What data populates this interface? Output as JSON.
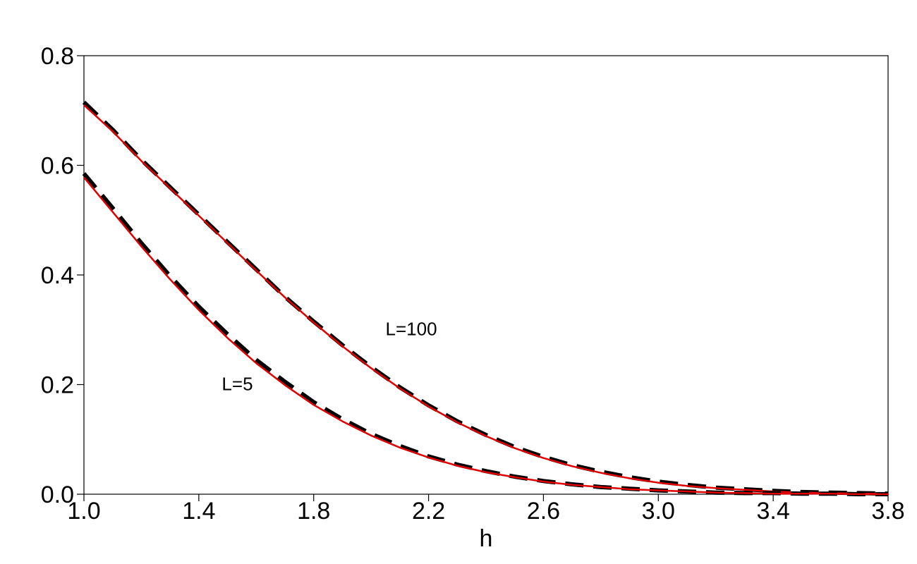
{
  "chart_data": {
    "type": "line",
    "title": "",
    "xlabel": "h",
    "ylabel": "",
    "xlim": [
      1.0,
      3.8
    ],
    "ylim": [
      0.0,
      0.8
    ],
    "grid": false,
    "x_ticks": [
      "1.0",
      "1.4",
      "1.8",
      "2.2",
      "2.6",
      "3.0",
      "3.4",
      "3.8"
    ],
    "y_ticks": [
      "0.0",
      "0.2",
      "0.4",
      "0.6",
      "0.8"
    ],
    "annotations": [
      {
        "text": "L=100",
        "x": 2.05,
        "y": 0.29
      },
      {
        "text": "L=5",
        "x": 1.48,
        "y": 0.19
      }
    ],
    "series": [
      {
        "color": "#000000",
        "style": "dashed",
        "x": [
          1.0,
          1.1,
          1.2,
          1.3,
          1.4,
          1.5,
          1.6,
          1.7,
          1.8,
          1.9,
          2.0,
          2.1,
          2.2,
          2.3,
          2.4,
          2.5,
          2.6,
          2.7,
          2.8,
          2.9,
          3.0,
          3.1,
          3.2,
          3.3,
          3.4,
          3.5,
          3.6,
          3.7,
          3.8
        ],
        "y": [
          0.715,
          0.665,
          0.61,
          0.56,
          0.51,
          0.46,
          0.41,
          0.36,
          0.315,
          0.272,
          0.232,
          0.195,
          0.162,
          0.133,
          0.108,
          0.086,
          0.068,
          0.053,
          0.041,
          0.031,
          0.023,
          0.017,
          0.012,
          0.009,
          0.006,
          0.004,
          0.003,
          0.002,
          0.001
        ]
      },
      {
        "color": "#e00000",
        "style": "solid",
        "x": [
          1.0,
          1.1,
          1.2,
          1.3,
          1.4,
          1.5,
          1.6,
          1.7,
          1.8,
          1.9,
          2.0,
          2.1,
          2.2,
          2.3,
          2.4,
          2.5,
          2.6,
          2.7,
          2.8,
          2.9,
          3.0,
          3.1,
          3.2,
          3.3,
          3.4,
          3.5,
          3.6,
          3.7,
          3.8
        ],
        "y": [
          0.71,
          0.662,
          0.608,
          0.558,
          0.508,
          0.458,
          0.408,
          0.359,
          0.313,
          0.27,
          0.23,
          0.193,
          0.16,
          0.131,
          0.106,
          0.084,
          0.066,
          0.051,
          0.039,
          0.029,
          0.021,
          0.015,
          0.011,
          0.008,
          0.005,
          0.003,
          0.002,
          0.001,
          0.001
        ]
      },
      {
        "color": "#000000",
        "style": "dashed",
        "x": [
          1.0,
          1.1,
          1.2,
          1.3,
          1.4,
          1.5,
          1.6,
          1.7,
          1.8,
          1.9,
          2.0,
          2.1,
          2.2,
          2.3,
          2.4,
          2.5,
          2.6,
          2.7,
          2.8,
          2.9,
          3.0,
          3.1,
          3.2,
          3.3,
          3.4,
          3.5,
          3.6,
          3.7,
          3.8
        ],
        "y": [
          0.585,
          0.522,
          0.458,
          0.398,
          0.342,
          0.292,
          0.245,
          0.205,
          0.168,
          0.137,
          0.11,
          0.088,
          0.069,
          0.054,
          0.042,
          0.032,
          0.024,
          0.018,
          0.013,
          0.01,
          0.007,
          0.005,
          0.003,
          0.002,
          0.002,
          0.001,
          0.001,
          0.0,
          0.0
        ]
      },
      {
        "color": "#e00000",
        "style": "solid",
        "x": [
          1.0,
          1.1,
          1.2,
          1.3,
          1.4,
          1.5,
          1.6,
          1.7,
          1.8,
          1.9,
          2.0,
          2.1,
          2.2,
          2.3,
          2.4,
          2.5,
          2.6,
          2.7,
          2.8,
          2.9,
          3.0,
          3.1,
          3.2,
          3.3,
          3.4,
          3.5,
          3.6,
          3.7,
          3.8
        ],
        "y": [
          0.578,
          0.515,
          0.452,
          0.392,
          0.336,
          0.285,
          0.239,
          0.199,
          0.163,
          0.133,
          0.107,
          0.085,
          0.067,
          0.052,
          0.04,
          0.031,
          0.023,
          0.017,
          0.013,
          0.009,
          0.007,
          0.005,
          0.003,
          0.002,
          0.001,
          0.001,
          0.001,
          0.0,
          0.0
        ]
      }
    ]
  }
}
